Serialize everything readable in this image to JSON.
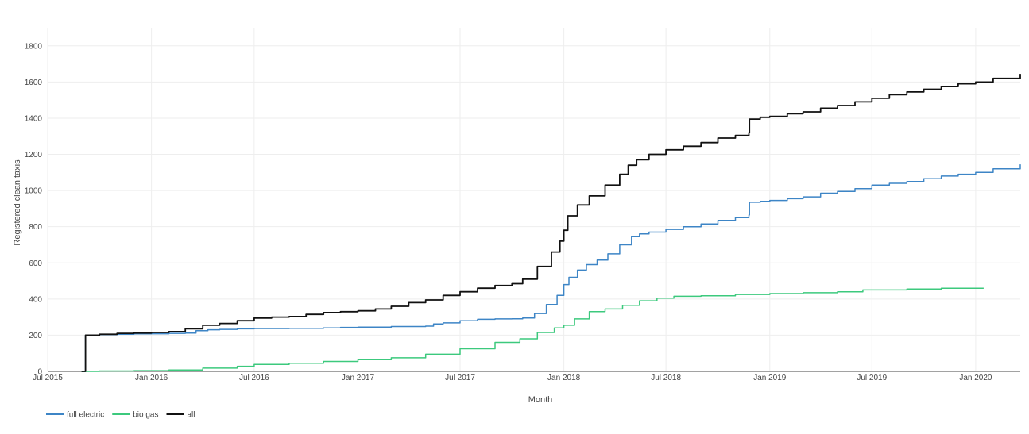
{
  "chart_data": {
    "type": "line",
    "title": "",
    "xlabel": "Month",
    "ylabel": "Registered clean taxis",
    "x_range": [
      "2015-07-01",
      "2020-03-20"
    ],
    "ylim": [
      0,
      1900
    ],
    "y_ticks": [
      0,
      200,
      400,
      600,
      800,
      1000,
      1200,
      1400,
      1600,
      1800
    ],
    "x_ticks": [
      {
        "date": "2015-07-01",
        "label": "Jul 2015"
      },
      {
        "date": "2016-01-01",
        "label": "Jan 2016"
      },
      {
        "date": "2016-07-01",
        "label": "Jul 2016"
      },
      {
        "date": "2017-01-01",
        "label": "Jan 2017"
      },
      {
        "date": "2017-07-01",
        "label": "Jul 2017"
      },
      {
        "date": "2018-01-01",
        "label": "Jan 2018"
      },
      {
        "date": "2018-07-01",
        "label": "Jul 2018"
      },
      {
        "date": "2019-01-01",
        "label": "Jan 2019"
      },
      {
        "date": "2019-07-01",
        "label": "Jul 2019"
      },
      {
        "date": "2020-01-01",
        "label": "Jan 2020"
      }
    ],
    "grid": true,
    "legend_position": "bottom-left",
    "series": [
      {
        "name": "full electric",
        "color": "#3d85c6",
        "points": [
          [
            "2015-08-30",
            0
          ],
          [
            "2015-09-06",
            200
          ],
          [
            "2015-10-01",
            203
          ],
          [
            "2015-11-01",
            205
          ],
          [
            "2015-12-01",
            207
          ],
          [
            "2016-01-01",
            208
          ],
          [
            "2016-02-01",
            210
          ],
          [
            "2016-03-01",
            212
          ],
          [
            "2016-03-20",
            225
          ],
          [
            "2016-04-10",
            230
          ],
          [
            "2016-05-01",
            232
          ],
          [
            "2016-06-01",
            235
          ],
          [
            "2016-07-01",
            237
          ],
          [
            "2016-09-01",
            238
          ],
          [
            "2016-11-01",
            240
          ],
          [
            "2016-12-01",
            243
          ],
          [
            "2017-01-01",
            245
          ],
          [
            "2017-03-01",
            248
          ],
          [
            "2017-05-01",
            250
          ],
          [
            "2017-05-15",
            262
          ],
          [
            "2017-06-01",
            268
          ],
          [
            "2017-07-01",
            280
          ],
          [
            "2017-08-01",
            288
          ],
          [
            "2017-09-01",
            290
          ],
          [
            "2017-10-01",
            291
          ],
          [
            "2017-10-20",
            295
          ],
          [
            "2017-11-10",
            320
          ],
          [
            "2017-12-01",
            370
          ],
          [
            "2017-12-20",
            420
          ],
          [
            "2018-01-01",
            480
          ],
          [
            "2018-01-10",
            520
          ],
          [
            "2018-01-25",
            560
          ],
          [
            "2018-02-10",
            590
          ],
          [
            "2018-03-01",
            615
          ],
          [
            "2018-03-20",
            650
          ],
          [
            "2018-04-10",
            700
          ],
          [
            "2018-05-01",
            745
          ],
          [
            "2018-05-15",
            760
          ],
          [
            "2018-06-01",
            770
          ],
          [
            "2018-07-01",
            785
          ],
          [
            "2018-08-01",
            800
          ],
          [
            "2018-09-01",
            815
          ],
          [
            "2018-10-01",
            835
          ],
          [
            "2018-11-01",
            850
          ],
          [
            "2018-11-25",
            865
          ],
          [
            "2018-11-26",
            935
          ],
          [
            "2018-12-15",
            940
          ],
          [
            "2019-01-01",
            945
          ],
          [
            "2019-02-01",
            955
          ],
          [
            "2019-03-01",
            965
          ],
          [
            "2019-04-01",
            985
          ],
          [
            "2019-05-01",
            995
          ],
          [
            "2019-06-01",
            1010
          ],
          [
            "2019-07-01",
            1030
          ],
          [
            "2019-08-01",
            1040
          ],
          [
            "2019-09-01",
            1050
          ],
          [
            "2019-10-01",
            1065
          ],
          [
            "2019-11-01",
            1080
          ],
          [
            "2019-12-01",
            1090
          ],
          [
            "2020-01-01",
            1100
          ],
          [
            "2020-02-01",
            1120
          ],
          [
            "2020-03-20",
            1145
          ]
        ]
      },
      {
        "name": "bio gas",
        "color": "#3cc97d",
        "points": [
          [
            "2015-08-30",
            0
          ],
          [
            "2015-10-01",
            2
          ],
          [
            "2015-12-01",
            4
          ],
          [
            "2016-02-01",
            8
          ],
          [
            "2016-04-01",
            18
          ],
          [
            "2016-06-01",
            28
          ],
          [
            "2016-07-01",
            38
          ],
          [
            "2016-09-01",
            45
          ],
          [
            "2016-11-01",
            55
          ],
          [
            "2017-01-01",
            65
          ],
          [
            "2017-03-01",
            75
          ],
          [
            "2017-05-01",
            95
          ],
          [
            "2017-07-01",
            125
          ],
          [
            "2017-09-01",
            160
          ],
          [
            "2017-10-15",
            180
          ],
          [
            "2017-11-15",
            215
          ],
          [
            "2017-12-15",
            240
          ],
          [
            "2018-01-01",
            255
          ],
          [
            "2018-01-20",
            290
          ],
          [
            "2018-02-15",
            330
          ],
          [
            "2018-03-15",
            345
          ],
          [
            "2018-04-15",
            365
          ],
          [
            "2018-05-15",
            390
          ],
          [
            "2018-06-15",
            405
          ],
          [
            "2018-07-15",
            415
          ],
          [
            "2018-09-01",
            418
          ],
          [
            "2018-11-01",
            425
          ],
          [
            "2019-01-01",
            430
          ],
          [
            "2019-03-01",
            435
          ],
          [
            "2019-05-01",
            440
          ],
          [
            "2019-06-15",
            450
          ],
          [
            "2019-09-01",
            455
          ],
          [
            "2019-11-01",
            460
          ],
          [
            "2020-01-15",
            460
          ]
        ]
      },
      {
        "name": "all",
        "color": "#111111",
        "points": [
          [
            "2015-08-30",
            0
          ],
          [
            "2015-09-06",
            200
          ],
          [
            "2015-10-01",
            205
          ],
          [
            "2015-11-01",
            210
          ],
          [
            "2015-12-01",
            212
          ],
          [
            "2016-01-01",
            215
          ],
          [
            "2016-02-01",
            220
          ],
          [
            "2016-03-01",
            235
          ],
          [
            "2016-04-01",
            255
          ],
          [
            "2016-05-01",
            265
          ],
          [
            "2016-06-01",
            280
          ],
          [
            "2016-07-01",
            295
          ],
          [
            "2016-08-01",
            300
          ],
          [
            "2016-09-01",
            303
          ],
          [
            "2016-10-01",
            315
          ],
          [
            "2016-11-01",
            325
          ],
          [
            "2016-12-01",
            330
          ],
          [
            "2017-01-01",
            335
          ],
          [
            "2017-02-01",
            345
          ],
          [
            "2017-03-01",
            360
          ],
          [
            "2017-04-01",
            380
          ],
          [
            "2017-05-01",
            395
          ],
          [
            "2017-06-01",
            420
          ],
          [
            "2017-07-01",
            440
          ],
          [
            "2017-08-01",
            460
          ],
          [
            "2017-09-01",
            475
          ],
          [
            "2017-10-01",
            485
          ],
          [
            "2017-10-20",
            510
          ],
          [
            "2017-11-15",
            580
          ],
          [
            "2017-12-10",
            660
          ],
          [
            "2017-12-25",
            720
          ],
          [
            "2018-01-01",
            780
          ],
          [
            "2018-01-08",
            860
          ],
          [
            "2018-01-25",
            920
          ],
          [
            "2018-02-15",
            970
          ],
          [
            "2018-03-15",
            1030
          ],
          [
            "2018-04-10",
            1090
          ],
          [
            "2018-04-25",
            1140
          ],
          [
            "2018-05-10",
            1170
          ],
          [
            "2018-06-01",
            1200
          ],
          [
            "2018-07-01",
            1225
          ],
          [
            "2018-08-01",
            1245
          ],
          [
            "2018-09-01",
            1265
          ],
          [
            "2018-10-01",
            1290
          ],
          [
            "2018-11-01",
            1305
          ],
          [
            "2018-11-25",
            1320
          ],
          [
            "2018-11-26",
            1395
          ],
          [
            "2018-12-15",
            1405
          ],
          [
            "2019-01-01",
            1410
          ],
          [
            "2019-02-01",
            1425
          ],
          [
            "2019-03-01",
            1435
          ],
          [
            "2019-04-01",
            1455
          ],
          [
            "2019-05-01",
            1470
          ],
          [
            "2019-06-01",
            1490
          ],
          [
            "2019-07-01",
            1510
          ],
          [
            "2019-08-01",
            1530
          ],
          [
            "2019-09-01",
            1545
          ],
          [
            "2019-10-01",
            1560
          ],
          [
            "2019-11-01",
            1575
          ],
          [
            "2019-12-01",
            1590
          ],
          [
            "2020-01-01",
            1600
          ],
          [
            "2020-02-01",
            1620
          ],
          [
            "2020-03-20",
            1645
          ]
        ]
      }
    ]
  }
}
